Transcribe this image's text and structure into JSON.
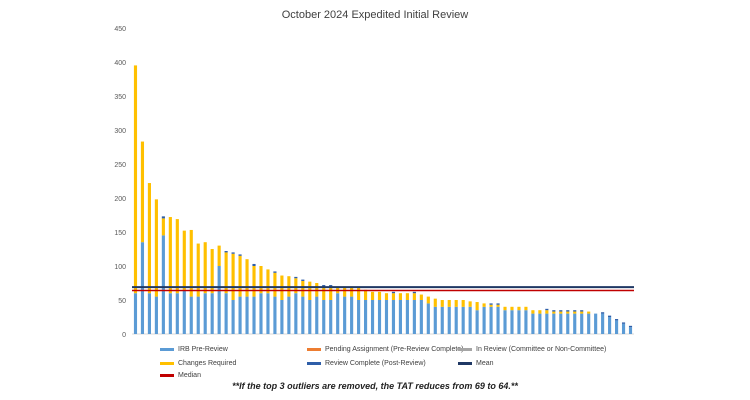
{
  "chart_data": {
    "type": "bar",
    "stacked": true,
    "title": "October 2024 Expedited Initial Review",
    "xlabel": "",
    "ylabel": "",
    "ylim": [
      0,
      450
    ],
    "yticks": [
      0,
      50,
      100,
      150,
      200,
      250,
      300,
      350,
      400,
      450
    ],
    "series": [
      {
        "name": "IRB Pre-Review",
        "color": "#5B9BD5",
        "values": [
          60,
          135,
          60,
          55,
          145,
          60,
          60,
          65,
          55,
          55,
          60,
          60,
          100,
          60,
          50,
          55,
          55,
          55,
          60,
          60,
          55,
          50,
          55,
          60,
          55,
          50,
          55,
          50,
          50,
          60,
          55,
          55,
          50,
          50,
          50,
          50,
          50,
          50,
          50,
          50,
          50,
          50,
          45,
          40,
          40,
          40,
          40,
          40,
          40,
          35,
          40,
          40,
          40,
          35,
          35,
          35,
          35,
          30,
          30,
          30,
          30,
          30,
          30,
          30,
          30,
          30,
          30,
          30,
          25,
          20,
          15,
          10
        ]
      },
      {
        "name": "Changes Required",
        "color": "#FFC000",
        "values": [
          335,
          148,
          162,
          143,
          25,
          112,
          109,
          87,
          98,
          78,
          75,
          65,
          30,
          60,
          68,
          60,
          55,
          45,
          40,
          35,
          35,
          36,
          30,
          22,
          23,
          27,
          20,
          20,
          20,
          10,
          15,
          15,
          18,
          15,
          12,
          12,
          10,
          10,
          10,
          10,
          10,
          8,
          10,
          12,
          10,
          10,
          10,
          10,
          8,
          12,
          5,
          3,
          3,
          5,
          5,
          5,
          5,
          5,
          5,
          5,
          3,
          3,
          3,
          3,
          3,
          3,
          0,
          0,
          0,
          0,
          0,
          0
        ]
      },
      {
        "name": "Review Complete (Post-Review)",
        "color": "#2E5EA8",
        "values": [
          0,
          0,
          0,
          0,
          3,
          0,
          0,
          0,
          0,
          0,
          0,
          0,
          0,
          2,
          2,
          2,
          0,
          3,
          0,
          0,
          2,
          0,
          0,
          2,
          2,
          0,
          0,
          2,
          2,
          0,
          0,
          0,
          0,
          0,
          0,
          0,
          0,
          2,
          0,
          0,
          2,
          0,
          0,
          0,
          0,
          0,
          0,
          0,
          0,
          0,
          0,
          2,
          2,
          0,
          0,
          0,
          0,
          0,
          0,
          2,
          2,
          2,
          2,
          2,
          2,
          0,
          0,
          2,
          2,
          2,
          2,
          2
        ]
      },
      {
        "name": "Pending Assignment (Pre-Review Complete)",
        "color": "#ED7D31",
        "values": []
      },
      {
        "name": "In Review (Committee or Non-Committee)",
        "color": "#A5A5A5",
        "values": []
      }
    ],
    "mean": 69,
    "median": 64,
    "mean_label": "Mean",
    "median_label": "Median",
    "mean_color": "#1F3864",
    "median_color": "#C00000",
    "legend": [
      {
        "label": "IRB Pre-Review",
        "color": "#5B9BD5"
      },
      {
        "label": "Pending Assignment (Pre-Review Complete)",
        "color": "#ED7D31"
      },
      {
        "label": "In Review (Committee or Non-Committee)",
        "color": "#A5A5A5"
      },
      {
        "label": "Changes Required",
        "color": "#FFC000"
      },
      {
        "label": "Review Complete (Post-Review)",
        "color": "#2E5EA8"
      },
      {
        "label": "Mean",
        "color": "#1F3864"
      },
      {
        "label": "Median",
        "color": "#C00000"
      }
    ],
    "legend_position": "bottom"
  },
  "footnote": "**If the top 3 outliers are removed, the TAT reduces from 69 to 64.**"
}
